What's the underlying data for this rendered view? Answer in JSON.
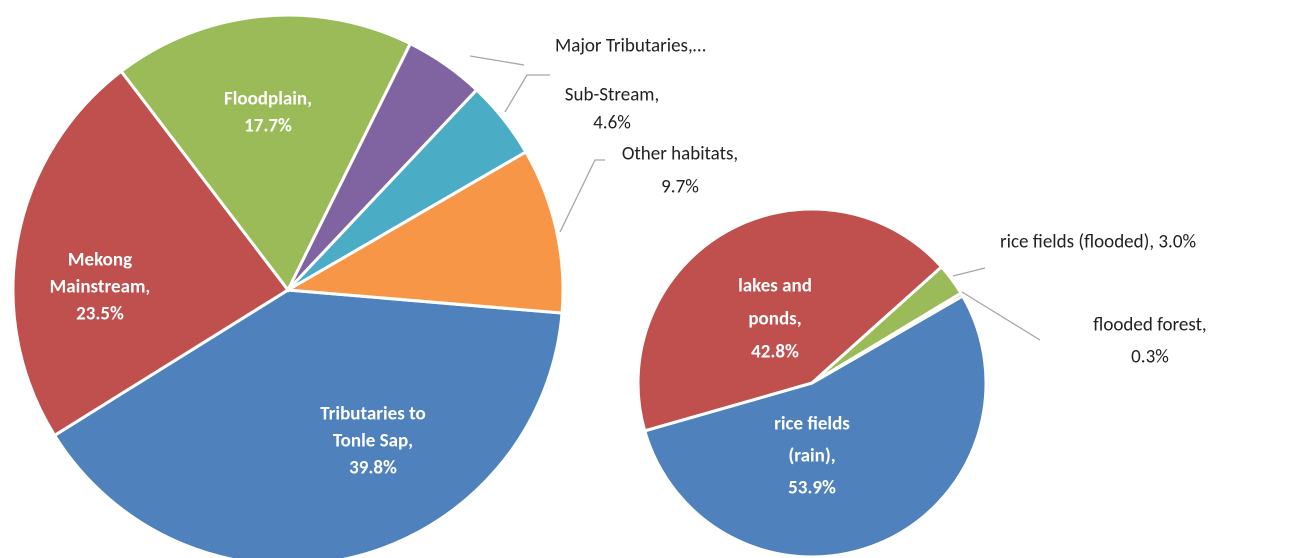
{
  "chart_data": {
    "type": "pie-of-pie",
    "pies": [
      {
        "categories": [
          "Tributaries to Tonle Sap",
          "Mekong Mainstream",
          "Floodplain",
          "Major Tributaries",
          "Sub-Stream",
          "Other habitats"
        ],
        "values": [
          39.8,
          23.5,
          17.7,
          4.7,
          4.6,
          9.7
        ],
        "value_labels": [
          [
            "Tributaries to",
            "Tonle Sap,",
            "39.8%"
          ],
          [
            "Mekong",
            "Mainstream,",
            "23.5%"
          ],
          [
            "Floodplain,",
            "17.7%"
          ],
          [
            "Major Tributaries,…"
          ],
          [
            "Sub-Stream,",
            "4.6%"
          ],
          [
            "Other habitats,",
            "9.7%"
          ]
        ],
        "colors": [
          "#4f81bd",
          "#c0504d",
          "#9bbb59",
          "#8064a2",
          "#4bacc6",
          "#f79646"
        ]
      },
      {
        "categories": [
          "rice fields (rain)",
          "lakes and ponds",
          "rice fields (flooded)",
          "flooded forest"
        ],
        "values": [
          53.9,
          42.8,
          3.0,
          0.3
        ],
        "value_labels": [
          [
            "rice fields",
            "(rain),",
            "53.9%"
          ],
          [
            "lakes and",
            "ponds,",
            "42.8%"
          ],
          [
            "rice fields (flooded), 3.0%"
          ],
          [
            "flooded forest,",
            "0.3%"
          ]
        ],
        "colors": [
          "#4f81bd",
          "#c0504d",
          "#9bbb59",
          "#8064a2"
        ]
      }
    ]
  }
}
